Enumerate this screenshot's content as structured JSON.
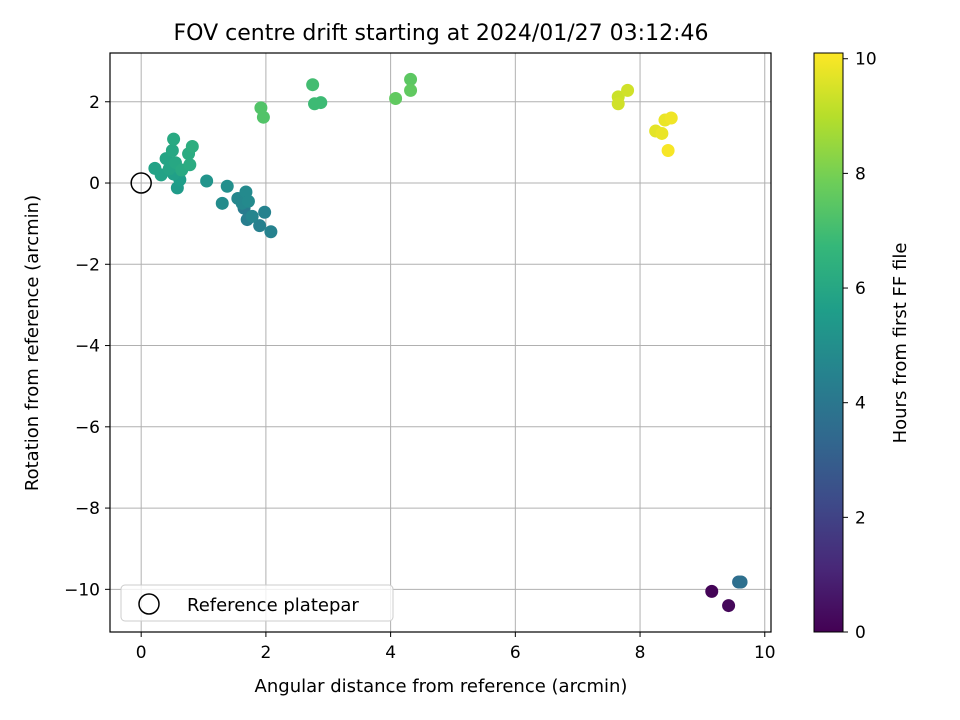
{
  "chart_data": {
    "type": "scatter",
    "title": "FOV centre drift starting at 2024/01/27 03:12:46",
    "xlabel": "Angular distance from reference (arcmin)",
    "ylabel": "Rotation from reference (arcmin)",
    "xlim": [
      -0.5,
      10.1
    ],
    "ylim": [
      -11.05,
      3.2
    ],
    "xticks": [
      0,
      2,
      4,
      6,
      8,
      10
    ],
    "yticks": [
      -10,
      -8,
      -6,
      -4,
      -2,
      0,
      2
    ],
    "grid": true,
    "legend": {
      "placement": "lower-left",
      "entries": [
        "Reference platepar"
      ]
    },
    "reference_point": {
      "x": 0,
      "y": 0,
      "label": "Reference platepar"
    },
    "colorbar": {
      "label": "Hours from first FF file",
      "range": [
        0,
        10.1
      ],
      "ticks": [
        0,
        2,
        4,
        6,
        8,
        10
      ],
      "colormap": "viridis"
    },
    "points": [
      {
        "x": 9.15,
        "y": -10.05,
        "c": 0.1
      },
      {
        "x": 9.42,
        "y": -10.4,
        "c": 0.2
      },
      {
        "x": 9.58,
        "y": -9.82,
        "c": 3.6
      },
      {
        "x": 9.62,
        "y": -9.82,
        "c": 3.7
      },
      {
        "x": 1.65,
        "y": -0.62,
        "c": 4.2
      },
      {
        "x": 1.7,
        "y": -0.9,
        "c": 4.3
      },
      {
        "x": 1.9,
        "y": -1.05,
        "c": 4.4
      },
      {
        "x": 2.08,
        "y": -1.2,
        "c": 4.5
      },
      {
        "x": 1.98,
        "y": -0.72,
        "c": 4.5
      },
      {
        "x": 1.78,
        "y": -0.82,
        "c": 4.6
      },
      {
        "x": 1.55,
        "y": -0.38,
        "c": 4.7
      },
      {
        "x": 1.62,
        "y": -0.5,
        "c": 4.7
      },
      {
        "x": 1.68,
        "y": -0.22,
        "c": 4.8
      },
      {
        "x": 1.72,
        "y": -0.45,
        "c": 4.8
      },
      {
        "x": 1.3,
        "y": -0.5,
        "c": 4.9
      },
      {
        "x": 1.38,
        "y": -0.08,
        "c": 5.0
      },
      {
        "x": 1.05,
        "y": 0.05,
        "c": 5.2
      },
      {
        "x": 0.58,
        "y": -0.12,
        "c": 5.5
      },
      {
        "x": 0.62,
        "y": 0.08,
        "c": 5.6
      },
      {
        "x": 0.52,
        "y": 0.22,
        "c": 5.7
      },
      {
        "x": 0.32,
        "y": 0.2,
        "c": 5.8
      },
      {
        "x": 0.22,
        "y": 0.36,
        "c": 5.8
      },
      {
        "x": 0.45,
        "y": 0.35,
        "c": 5.9
      },
      {
        "x": 0.4,
        "y": 0.6,
        "c": 5.9
      },
      {
        "x": 0.5,
        "y": 0.8,
        "c": 6.0
      },
      {
        "x": 0.55,
        "y": 0.5,
        "c": 6.0
      },
      {
        "x": 0.52,
        "y": 1.08,
        "c": 6.1
      },
      {
        "x": 0.65,
        "y": 0.32,
        "c": 6.1
      },
      {
        "x": 0.78,
        "y": 0.45,
        "c": 6.2
      },
      {
        "x": 0.76,
        "y": 0.72,
        "c": 6.2
      },
      {
        "x": 0.82,
        "y": 0.9,
        "c": 6.3
      },
      {
        "x": 1.92,
        "y": 1.85,
        "c": 7.3
      },
      {
        "x": 1.96,
        "y": 1.62,
        "c": 7.3
      },
      {
        "x": 2.75,
        "y": 2.42,
        "c": 7.0
      },
      {
        "x": 2.78,
        "y": 1.95,
        "c": 6.9
      },
      {
        "x": 2.88,
        "y": 1.98,
        "c": 6.9
      },
      {
        "x": 4.08,
        "y": 2.08,
        "c": 7.6
      },
      {
        "x": 4.32,
        "y": 2.55,
        "c": 7.5
      },
      {
        "x": 4.32,
        "y": 2.28,
        "c": 7.6
      },
      {
        "x": 7.65,
        "y": 2.12,
        "c": 9.3
      },
      {
        "x": 7.65,
        "y": 1.95,
        "c": 9.4
      },
      {
        "x": 7.8,
        "y": 2.28,
        "c": 9.4
      },
      {
        "x": 8.25,
        "y": 1.28,
        "c": 9.7
      },
      {
        "x": 8.35,
        "y": 1.22,
        "c": 9.8
      },
      {
        "x": 8.4,
        "y": 1.55,
        "c": 9.8
      },
      {
        "x": 8.5,
        "y": 1.6,
        "c": 9.9
      },
      {
        "x": 8.45,
        "y": 0.8,
        "c": 10.0
      }
    ]
  }
}
